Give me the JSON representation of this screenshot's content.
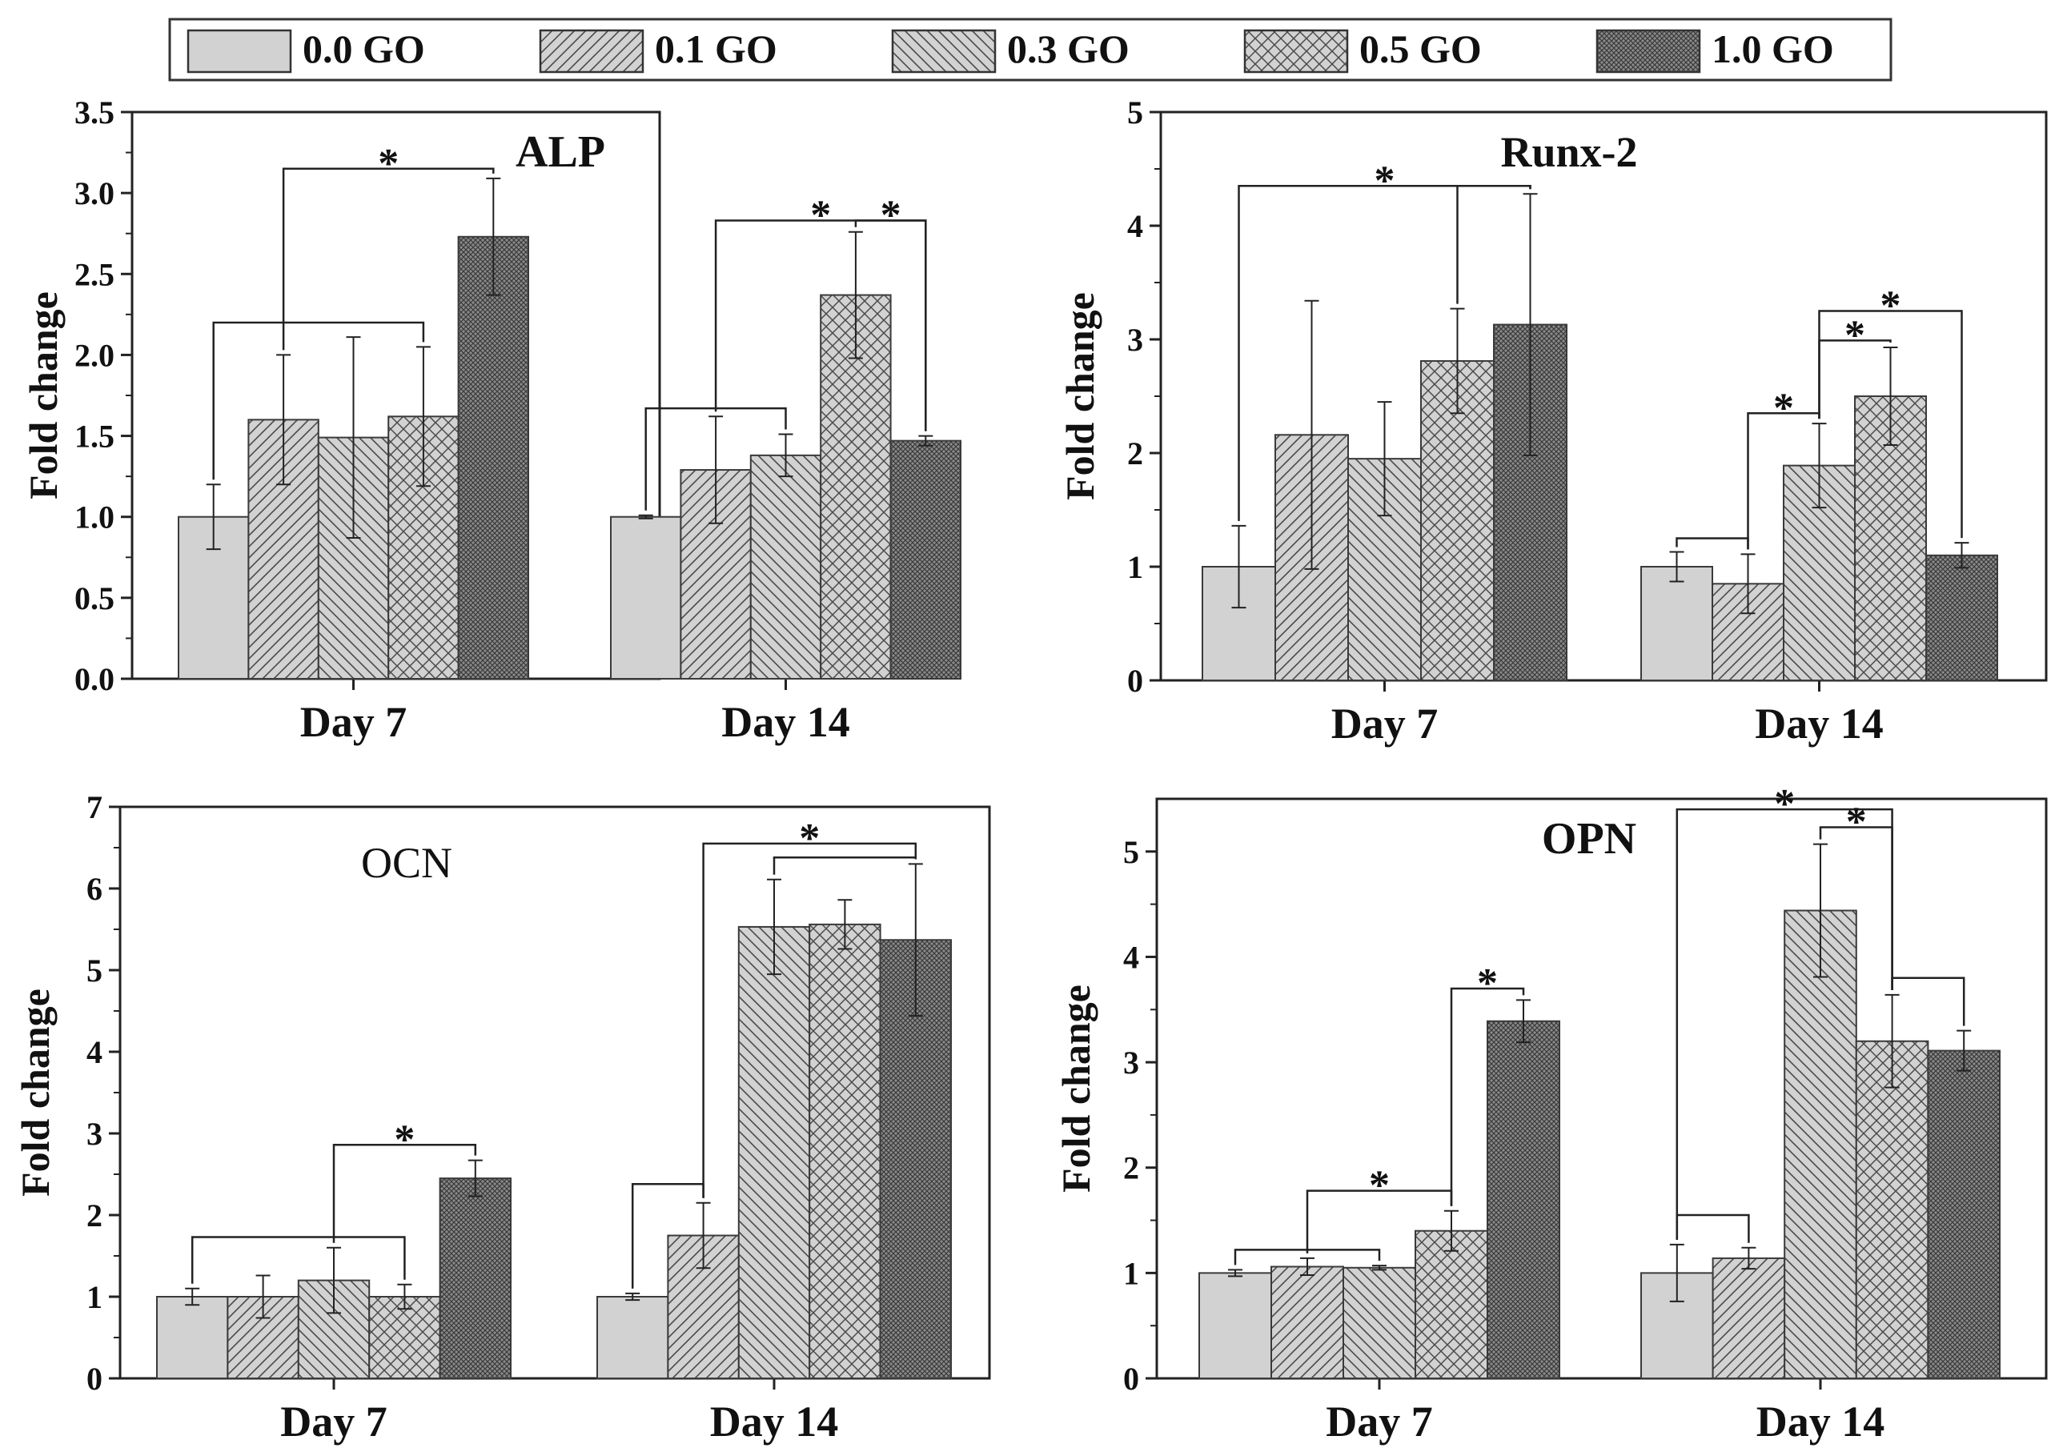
{
  "legend": {
    "entries": [
      {
        "label": "0.0 GO",
        "pattern": "solid"
      },
      {
        "label": "0.1 GO",
        "pattern": "diag-right"
      },
      {
        "label": "0.3 GO",
        "pattern": "diag-left"
      },
      {
        "label": "0.5 GO",
        "pattern": "cross"
      },
      {
        "label": "1.0 GO",
        "pattern": "dense"
      }
    ]
  },
  "colors": {
    "bar_fill": "#d2d2d2",
    "bar_stroke": "#3a3a3a",
    "hatch": "#4a4a4a",
    "dense": "#5e5e5e",
    "axis": "#222222"
  },
  "chart_data": [
    {
      "type": "bar",
      "title": "ALP",
      "ylabel": "Fold change",
      "categories": [
        "Day 7",
        "Day 14"
      ],
      "ylim": [
        0,
        3.5
      ],
      "yticks": [
        "0.0",
        "0.5",
        "1.0",
        "1.5",
        "2.0",
        "2.5",
        "3.0",
        "3.5"
      ],
      "series": [
        {
          "name": "0.0 GO",
          "values": [
            1.0,
            1.0
          ],
          "errors": [
            0.2,
            0.01
          ]
        },
        {
          "name": "0.1 GO",
          "values": [
            1.6,
            1.29
          ],
          "errors": [
            0.4,
            0.33
          ]
        },
        {
          "name": "0.3 GO",
          "values": [
            1.49,
            1.38
          ],
          "errors": [
            0.62,
            0.13
          ]
        },
        {
          "name": "0.5 GO",
          "values": [
            1.62,
            2.37
          ],
          "errors": [
            0.43,
            0.39
          ]
        },
        {
          "name": "1.0 GO",
          "values": [
            2.73,
            1.47
          ],
          "errors": [
            0.36,
            0.03
          ]
        }
      ],
      "annotations": [
        "*",
        "*",
        "*"
      ]
    },
    {
      "type": "bar",
      "title": "Runx-2",
      "ylabel": "Fold change",
      "categories": [
        "Day 7",
        "Day 14"
      ],
      "ylim": [
        0,
        5
      ],
      "yticks": [
        "0",
        "1",
        "2",
        "3",
        "4",
        "5"
      ],
      "series": [
        {
          "name": "0.0 GO",
          "values": [
            1.0,
            1.0
          ],
          "errors": [
            0.36,
            0.13
          ]
        },
        {
          "name": "0.1 GO",
          "values": [
            2.16,
            0.85
          ],
          "errors": [
            1.18,
            0.26
          ]
        },
        {
          "name": "0.3 GO",
          "values": [
            1.95,
            1.89
          ],
          "errors": [
            0.5,
            0.37
          ]
        },
        {
          "name": "0.5 GO",
          "values": [
            2.81,
            2.5
          ],
          "errors": [
            0.46,
            0.43
          ]
        },
        {
          "name": "1.0 GO",
          "values": [
            3.13,
            1.1
          ],
          "errors": [
            1.15,
            0.11
          ]
        }
      ],
      "annotations": [
        "*",
        "*",
        "*",
        "*"
      ]
    },
    {
      "type": "bar",
      "title": "OCN",
      "ylabel": "Fold change",
      "categories": [
        "Day 7",
        "Day 14"
      ],
      "ylim": [
        0,
        7
      ],
      "yticks": [
        "0",
        "1",
        "2",
        "3",
        "4",
        "5",
        "6",
        "7"
      ],
      "series": [
        {
          "name": "0.0 GO",
          "values": [
            1.0,
            1.0
          ],
          "errors": [
            0.1,
            0.04
          ]
        },
        {
          "name": "0.1 GO",
          "values": [
            1.0,
            1.75
          ],
          "errors": [
            0.26,
            0.4
          ]
        },
        {
          "name": "0.3 GO",
          "values": [
            1.2,
            5.53
          ],
          "errors": [
            0.4,
            0.58
          ]
        },
        {
          "name": "0.5 GO",
          "values": [
            1.0,
            5.56
          ],
          "errors": [
            0.15,
            0.3
          ]
        },
        {
          "name": "1.0 GO",
          "values": [
            2.45,
            5.37
          ],
          "errors": [
            0.22,
            0.93
          ]
        }
      ],
      "annotations": [
        "*",
        "*"
      ]
    },
    {
      "type": "bar",
      "title": "OPN",
      "ylabel": "Fold change",
      "categories": [
        "Day 7",
        "Day 14"
      ],
      "ylim": [
        0,
        5.5
      ],
      "yticks": [
        "0",
        "1",
        "2",
        "3",
        "4",
        "5"
      ],
      "series": [
        {
          "name": "0.0 GO",
          "values": [
            1.0,
            1.0
          ],
          "errors": [
            0.03,
            0.27
          ]
        },
        {
          "name": "0.1 GO",
          "values": [
            1.06,
            1.14
          ],
          "errors": [
            0.08,
            0.1
          ]
        },
        {
          "name": "0.3 GO",
          "values": [
            1.05,
            4.44
          ],
          "errors": [
            0.02,
            0.63
          ]
        },
        {
          "name": "0.5 GO",
          "values": [
            1.4,
            3.2
          ],
          "errors": [
            0.19,
            0.44
          ]
        },
        {
          "name": "1.0 GO",
          "values": [
            3.39,
            3.11
          ],
          "errors": [
            0.2,
            0.19
          ]
        }
      ],
      "annotations": [
        "*",
        "*",
        "*",
        "*"
      ]
    }
  ]
}
